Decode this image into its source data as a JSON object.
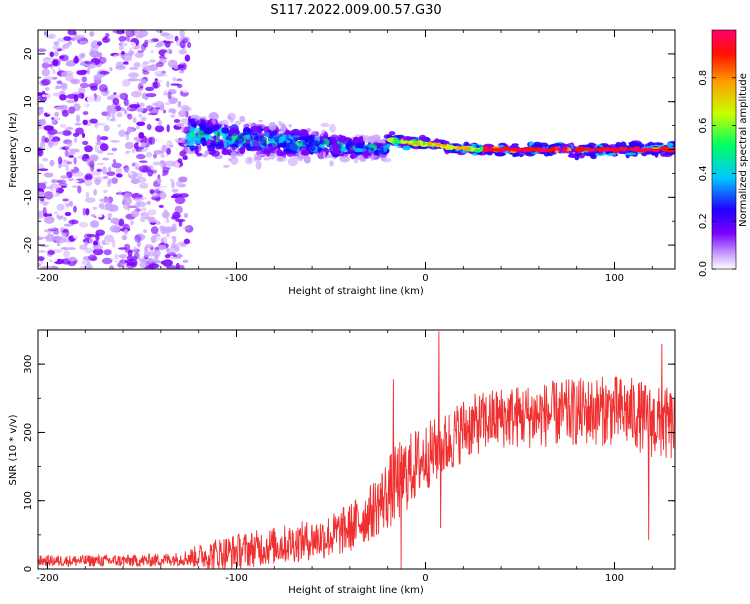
{
  "title": "S117.2022.009.00.57.G30",
  "chart_data": [
    {
      "type": "heatmap",
      "xlabel": "Height of straight line (km)",
      "ylabel": "Frequency (Hz)",
      "xlim": [
        -205,
        132
      ],
      "ylim": [
        -25,
        25
      ],
      "x_ticks": [
        -200,
        -100,
        0,
        100
      ],
      "x_tick_labels": [
        "-200",
        "-100",
        "0",
        "100"
      ],
      "y_ticks": [
        -20,
        -10,
        0,
        10,
        20
      ],
      "y_tick_labels": [
        "-20",
        "-10",
        "0",
        "10",
        "20"
      ],
      "colorbar": {
        "label": "Normalized spectral amplitude",
        "range": [
          0,
          1
        ],
        "ticks": [
          0.0,
          0.2,
          0.4,
          0.6,
          0.8
        ],
        "tick_labels": [
          "0.0",
          "0.2",
          "0.4",
          "0.6",
          "0.8"
        ],
        "colors": [
          "#ffffff",
          "#c9a3ff",
          "#7a00ff",
          "#2000ff",
          "#00c8ff",
          "#00ff60",
          "#c8ff00",
          "#ffa000",
          "#ff1000",
          "#ff0070"
        ]
      },
      "features": [
        {
          "region": "noise",
          "x_range": [
            -205,
            -125
          ],
          "freq_range": [
            -25,
            25
          ],
          "amplitude": 0.1
        },
        {
          "region": "transition",
          "x_range": [
            -125,
            -20
          ],
          "freq_center": [
            3,
            0
          ],
          "freq_spread": 5,
          "amplitude": 0.3
        },
        {
          "region": "signal-line",
          "x_range": [
            -20,
            132
          ],
          "freq_center": [
            2,
            0
          ],
          "amplitude": 0.95
        }
      ],
      "grid": false
    },
    {
      "type": "line",
      "xlabel": "Height of straight line (km)",
      "ylabel": "SNR (10 * v/v)",
      "xlim": [
        -205,
        132
      ],
      "ylim": [
        0,
        350
      ],
      "x_ticks": [
        -200,
        -100,
        0,
        100
      ],
      "x_tick_labels": [
        "-200",
        "-100",
        "0",
        "100"
      ],
      "y_ticks": [
        0,
        100,
        200,
        300
      ],
      "y_tick_labels": [
        "0",
        "100",
        "200",
        "300"
      ],
      "color": "#f03030",
      "trend": {
        "x": [
          -205,
          -180,
          -150,
          -130,
          -110,
          -90,
          -70,
          -50,
          -40,
          -30,
          -20,
          -10,
          0,
          10,
          20,
          30,
          40,
          60,
          80,
          100,
          110,
          120,
          132
        ],
        "y": [
          12,
          12,
          12,
          15,
          22,
          30,
          38,
          48,
          60,
          80,
          110,
          140,
          165,
          180,
          205,
          215,
          222,
          225,
          230,
          232,
          228,
          215,
          210
        ]
      },
      "noise_spread": {
        "x": [
          -205,
          -130,
          -110,
          -60,
          -30,
          -15,
          0,
          30,
          80,
          132
        ],
        "spread": [
          8,
          10,
          25,
          30,
          40,
          60,
          50,
          45,
          50,
          55
        ]
      },
      "spikes": [
        {
          "x": -17,
          "y": 278
        },
        {
          "x": 7,
          "y": 348
        },
        {
          "x": 8,
          "y": 60
        },
        {
          "x": -13,
          "y": 0
        },
        {
          "x": 118,
          "y": 42
        },
        {
          "x": 125,
          "y": 330
        }
      ],
      "grid": false
    }
  ]
}
